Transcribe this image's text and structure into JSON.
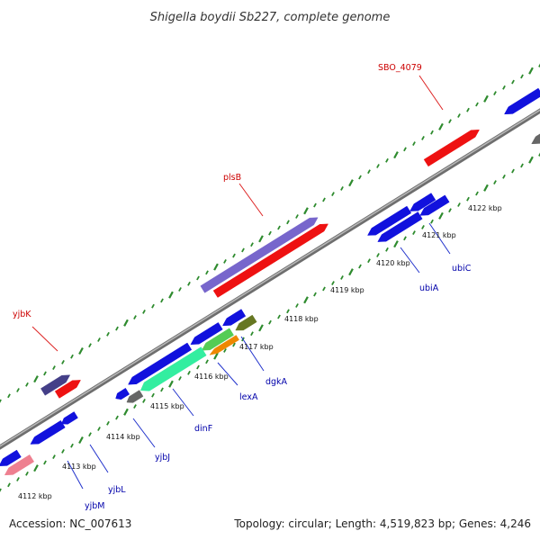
{
  "title": "Shigella boydii Sb227, complete genome",
  "footer": {
    "accession": "Accession: NC_007613",
    "topology": "Topology: circular; Length: 4,519,823 bp; Genes: 4,246"
  },
  "colors": {
    "backbone": "#808080",
    "tick": "#2e8b2e",
    "label_forward": "#cc0000",
    "label_reverse": "#0000aa",
    "label_line_forward": "#dd2222",
    "label_line_reverse": "#2233cc"
  },
  "kbp_labels": [
    "4112 kbp",
    "4113 kbp",
    "4114 kbp",
    "4115 kbp",
    "4116 kbp",
    "4117 kbp",
    "4118 kbp",
    "4119 kbp",
    "4120 kbp",
    "4121 kbp",
    "4122 kbp"
  ],
  "gene_labels": [
    {
      "name": "yjbK",
      "strand": "forward"
    },
    {
      "name": "plsB",
      "strand": "forward"
    },
    {
      "name": "SBO_4079",
      "strand": "forward"
    },
    {
      "name": "yjbM",
      "strand": "reverse"
    },
    {
      "name": "yjbL",
      "strand": "reverse"
    },
    {
      "name": "yjbJ",
      "strand": "reverse"
    },
    {
      "name": "dinF",
      "strand": "reverse"
    },
    {
      "name": "lexA",
      "strand": "reverse"
    },
    {
      "name": "dgkA",
      "strand": "reverse"
    },
    {
      "name": "ubiA",
      "strand": "reverse"
    },
    {
      "name": "ubiC",
      "strand": "reverse"
    }
  ],
  "feature_colors": {
    "cds_red": "#ee1111",
    "cds_blue": "#1111dd",
    "purple": "#7766cc",
    "darkslate": "#443f88",
    "mint": "#33eea0",
    "green_light": "#55cc55",
    "orange": "#ee8800",
    "olive": "#667722",
    "gray": "#666666",
    "pink": "#ee8090"
  }
}
